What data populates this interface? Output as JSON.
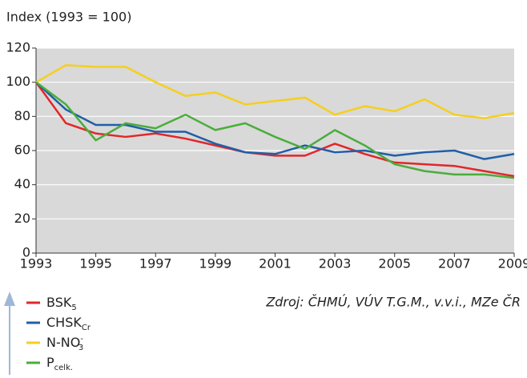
{
  "chart_data": {
    "type": "line",
    "y_axis_label": "Index (1993 = 100)",
    "source": "Zdroj: ČHMÚ, VÚV T.G.M., v.v.i., MZe ČR",
    "x": [
      1993,
      1994,
      1995,
      1996,
      1997,
      1998,
      1999,
      2000,
      2001,
      2002,
      2003,
      2004,
      2005,
      2006,
      2007,
      2008,
      2009
    ],
    "xlim": [
      1993,
      2009
    ],
    "xticks": [
      1993,
      1995,
      1997,
      1999,
      2001,
      2003,
      2005,
      2007,
      2009
    ],
    "ylim": [
      0,
      120
    ],
    "yticks": [
      0,
      20,
      40,
      60,
      80,
      100,
      120
    ],
    "grid": true,
    "background": "#d9d9d9",
    "series": [
      {
        "name": "BSK",
        "subscript": "5",
        "color": "#e3262a",
        "values": [
          100,
          76,
          70,
          68,
          70,
          67,
          63,
          59,
          57,
          57,
          64,
          58,
          53,
          52,
          51,
          48,
          45
        ]
      },
      {
        "name": "CHSK",
        "subscript": "Cr",
        "color": "#1f5fa8",
        "values": [
          100,
          84,
          75,
          75,
          71,
          71,
          64,
          59,
          58,
          63,
          59,
          60,
          57,
          59,
          60,
          55,
          58
        ]
      },
      {
        "name": "N-NO",
        "subscript": "3",
        "superscript": "-",
        "color": "#f5cf1c",
        "values": [
          100,
          110,
          109,
          109,
          100,
          92,
          94,
          87,
          89,
          91,
          81,
          86,
          83,
          90,
          81,
          79,
          82
        ]
      },
      {
        "name": "P",
        "subscript": "celk.",
        "color": "#4aad3c",
        "values": [
          100,
          87,
          66,
          76,
          73,
          81,
          72,
          76,
          68,
          61,
          72,
          63,
          52,
          48,
          46,
          46,
          44
        ]
      }
    ]
  }
}
